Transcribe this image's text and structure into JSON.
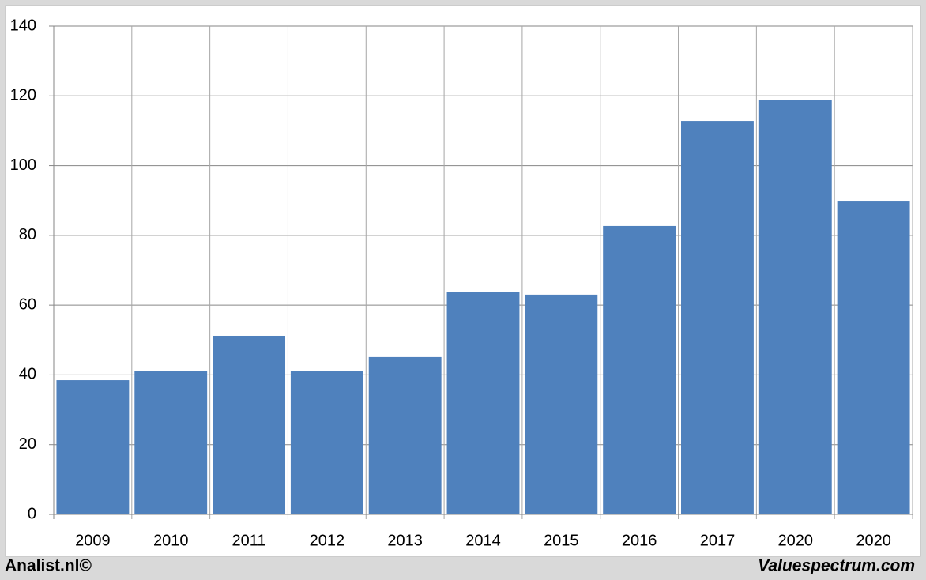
{
  "chart_data": {
    "type": "bar",
    "categories": [
      "2009",
      "2010",
      "2011",
      "2012",
      "2013",
      "2014",
      "2015",
      "2016",
      "2017",
      "2020",
      "2020"
    ],
    "values": [
      38.5,
      41.2,
      51.2,
      41.2,
      45.1,
      63.7,
      63,
      82.7,
      112.8,
      118.9,
      89.7
    ],
    "color": "#4f81bd",
    "ylim": [
      0,
      140
    ],
    "yticks": [
      0,
      20,
      40,
      60,
      80,
      100,
      120,
      140
    ],
    "grid": true
  },
  "footer": {
    "left": "Analist.nl©",
    "right": "Valuespectrum.com"
  }
}
